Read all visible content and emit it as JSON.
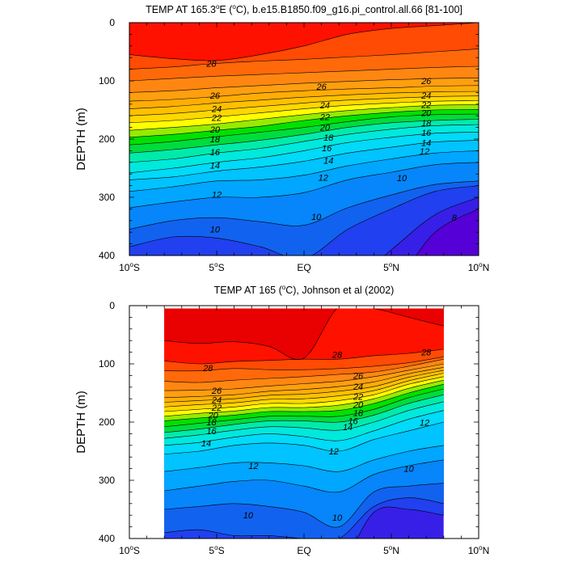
{
  "chart_data": [
    {
      "type": "filled-contour",
      "title_parts": {
        "pre": "TEMP AT 165.3",
        "sup1": "o",
        "mid": "E (",
        "sup2": "o",
        "post": "C), b.e15.B1850.f09_g16.pi_control.all.66 [81-100]"
      },
      "ylabel": "DEPTH (m)",
      "xlim": [
        -10,
        10
      ],
      "ylim": [
        400,
        0
      ],
      "x_ticks": [
        {
          "v": -10,
          "num": "10",
          "sup": "o",
          "hem": "S"
        },
        {
          "v": -5,
          "num": "5",
          "sup": "o",
          "hem": "S"
        },
        {
          "v": 0,
          "num": "EQ",
          "sup": "",
          "hem": ""
        },
        {
          "v": 5,
          "num": "5",
          "sup": "o",
          "hem": "N"
        },
        {
          "v": 10,
          "num": "10",
          "sup": "o",
          "hem": "N"
        }
      ],
      "y_ticks": [
        "0",
        "100",
        "200",
        "300",
        "400"
      ],
      "y_tick_values": [
        0,
        100,
        200,
        300,
        400
      ],
      "data_x_range": [
        -10,
        10
      ],
      "levels": [
        8,
        9,
        10,
        11,
        12,
        13,
        14,
        15,
        16,
        17,
        18,
        19,
        20,
        21,
        22,
        23,
        24,
        25,
        26,
        27,
        28
      ],
      "isotherm_x": [
        -10,
        -7.5,
        -5,
        -2.5,
        0,
        2.5,
        5,
        7.5,
        10
      ],
      "isotherm_depths": {
        "8": [
          450,
          450,
          450,
          450,
          450,
          450,
          450,
          360,
          320
        ],
        "9": [
          450,
          450,
          450,
          450,
          450,
          450,
          390,
          330,
          300
        ],
        "10": [
          385,
          368,
          370,
          385,
          405,
          355,
          320,
          290,
          280
        ],
        "11": [
          355,
          340,
          335,
          342,
          348,
          318,
          296,
          278,
          272
        ],
        "12": [
          318,
          308,
          300,
          300,
          292,
          270,
          257,
          244,
          240
        ],
        "13": [
          290,
          282,
          272,
          270,
          262,
          246,
          234,
          224,
          220
        ],
        "14": [
          270,
          265,
          255,
          248,
          238,
          224,
          214,
          205,
          202
        ],
        "15": [
          258,
          250,
          240,
          232,
          220,
          206,
          197,
          190,
          188
        ],
        "16": [
          240,
          234,
          224,
          216,
          204,
          192,
          183,
          177,
          175
        ],
        "17": [
          224,
          218,
          210,
          202,
          192,
          180,
          172,
          168,
          166
        ],
        "18": [
          210,
          204,
          196,
          188,
          180,
          170,
          162,
          158,
          157
        ],
        "19": [
          197,
          192,
          185,
          178,
          168,
          160,
          154,
          150,
          149
        ],
        "20": [
          185,
          180,
          174,
          166,
          158,
          151,
          146,
          142,
          141
        ],
        "21": [
          172,
          168,
          162,
          155,
          148,
          142,
          138,
          135,
          134
        ],
        "22": [
          160,
          156,
          150,
          144,
          138,
          133,
          130,
          127,
          126
        ],
        "23": [
          148,
          144,
          138,
          133,
          128,
          124,
          121,
          119,
          118
        ],
        "24": [
          135,
          132,
          127,
          121,
          117,
          114,
          112,
          109,
          108
        ],
        "25": [
          120,
          117,
          112,
          108,
          104,
          101,
          98,
          96,
          95
        ],
        "26": [
          100,
          96,
          92,
          89,
          86,
          83,
          80,
          77,
          75
        ],
        "27": [
          80,
          76,
          70,
          66,
          63,
          59,
          55,
          50,
          45
        ],
        "28": [
          55,
          62,
          65,
          55,
          40,
          20,
          10,
          5,
          0
        ]
      },
      "contour_labels": [
        {
          "text": "28",
          "x": -5.3,
          "y": 70
        },
        {
          "text": "26",
          "x": -5.1,
          "y": 125
        },
        {
          "text": "24",
          "x": -5.0,
          "y": 148
        },
        {
          "text": "22",
          "x": -5.0,
          "y": 163
        },
        {
          "text": "20",
          "x": -5.1,
          "y": 183
        },
        {
          "text": "18",
          "x": -5.1,
          "y": 200
        },
        {
          "text": "16",
          "x": -5.1,
          "y": 222
        },
        {
          "text": "14",
          "x": -5.1,
          "y": 245
        },
        {
          "text": "12",
          "x": -5.0,
          "y": 295
        },
        {
          "text": "10",
          "x": -5.1,
          "y": 355
        },
        {
          "text": "26",
          "x": 1.0,
          "y": 110
        },
        {
          "text": "24",
          "x": 1.2,
          "y": 142
        },
        {
          "text": "22",
          "x": 1.2,
          "y": 162
        },
        {
          "text": "20",
          "x": 1.2,
          "y": 180
        },
        {
          "text": "18",
          "x": 1.4,
          "y": 197
        },
        {
          "text": "16",
          "x": 1.3,
          "y": 215
        },
        {
          "text": "14",
          "x": 1.4,
          "y": 237
        },
        {
          "text": "12",
          "x": 1.1,
          "y": 266
        },
        {
          "text": "10",
          "x": 0.7,
          "y": 333
        },
        {
          "text": "26",
          "x": 7.0,
          "y": 100
        },
        {
          "text": "24",
          "x": 7.0,
          "y": 125
        },
        {
          "text": "22",
          "x": 7.0,
          "y": 141
        },
        {
          "text": "20",
          "x": 7.0,
          "y": 155
        },
        {
          "text": "18",
          "x": 7.0,
          "y": 172
        },
        {
          "text": "16",
          "x": 7.0,
          "y": 189
        },
        {
          "text": "14",
          "x": 7.0,
          "y": 206
        },
        {
          "text": "12",
          "x": 6.9,
          "y": 221
        },
        {
          "text": "10",
          "x": 5.6,
          "y": 267
        },
        {
          "text": "8",
          "x": 8.6,
          "y": 335
        }
      ]
    },
    {
      "type": "filled-contour",
      "title_parts": {
        "pre": "TEMP AT 165 (",
        "sup1": "o",
        "mid": "C), Johnson et al (2002)",
        "sup2": "",
        "post": ""
      },
      "ylabel": "DEPTH (m)",
      "xlim": [
        -10,
        10
      ],
      "ylim": [
        400,
        0
      ],
      "x_ticks": [
        {
          "v": -10,
          "num": "10",
          "sup": "o",
          "hem": "S"
        },
        {
          "v": -5,
          "num": "5",
          "sup": "o",
          "hem": "S"
        },
        {
          "v": 0,
          "num": "EQ",
          "sup": "",
          "hem": ""
        },
        {
          "v": 5,
          "num": "5",
          "sup": "o",
          "hem": "N"
        },
        {
          "v": 10,
          "num": "10",
          "sup": "o",
          "hem": "N"
        }
      ],
      "y_ticks": [
        "0",
        "100",
        "200",
        "300",
        "400"
      ],
      "y_tick_values": [
        0,
        100,
        200,
        300,
        400
      ],
      "data_x_range": [
        -8,
        8
      ],
      "data_top_depth": 5,
      "levels": [
        9,
        10,
        11,
        12,
        13,
        14,
        15,
        16,
        17,
        18,
        19,
        20,
        21,
        22,
        23,
        24,
        25,
        26,
        27,
        28,
        29
      ],
      "isotherm_x": [
        -8,
        -6,
        -4,
        -2,
        0,
        2,
        4,
        6,
        8
      ],
      "isotherm_depths": {
        "9": [
          450,
          450,
          450,
          450,
          450,
          450,
          355,
          350,
          360
        ],
        "10": [
          390,
          385,
          395,
          395,
          400,
          400,
          345,
          330,
          340
        ],
        "11": [
          350,
          345,
          340,
          345,
          355,
          380,
          320,
          310,
          305
        ],
        "12": [
          318,
          310,
          302,
          300,
          310,
          320,
          290,
          275,
          265
        ],
        "13": [
          285,
          278,
          270,
          270,
          275,
          285,
          265,
          250,
          240
        ],
        "14": [
          255,
          250,
          240,
          236,
          240,
          250,
          230,
          215,
          200
        ],
        "15": [
          240,
          235,
          226,
          220,
          225,
          232,
          215,
          195,
          180
        ],
        "16": [
          228,
          222,
          214,
          208,
          210,
          214,
          200,
          180,
          165
        ],
        "17": [
          218,
          212,
          204,
          198,
          198,
          200,
          188,
          168,
          153
        ],
        "18": [
          208,
          202,
          196,
          190,
          190,
          190,
          178,
          158,
          143
        ],
        "19": [
          198,
          193,
          188,
          182,
          182,
          180,
          168,
          150,
          135
        ],
        "20": [
          190,
          185,
          181,
          175,
          175,
          171,
          160,
          142,
          128
        ],
        "21": [
          182,
          178,
          174,
          168,
          168,
          163,
          153,
          135,
          122
        ],
        "22": [
          174,
          170,
          167,
          161,
          160,
          155,
          146,
          129,
          116
        ],
        "23": [
          166,
          163,
          160,
          154,
          152,
          147,
          139,
          123,
          111
        ],
        "24": [
          158,
          156,
          153,
          147,
          144,
          139,
          131,
          117,
          106
        ],
        "25": [
          146,
          145,
          143,
          138,
          134,
          130,
          122,
          111,
          100
        ],
        "26": [
          130,
          132,
          128,
          125,
          122,
          118,
          114,
          104,
          92
        ],
        "27": [
          112,
          112,
          108,
          110,
          110,
          108,
          104,
          98,
          88
        ],
        "28": [
          95,
          100,
          96,
          94,
          92,
          92,
          86,
          82,
          75
        ],
        "29": [
          60,
          65,
          62,
          70,
          90,
          2,
          5,
          20,
          35
        ]
      },
      "contour_labels": [
        {
          "text": "28",
          "x": -5.5,
          "y": 107
        },
        {
          "text": "26",
          "x": -5.0,
          "y": 146
        },
        {
          "text": "24",
          "x": -5.0,
          "y": 162
        },
        {
          "text": "22",
          "x": -5.0,
          "y": 175
        },
        {
          "text": "20",
          "x": -5.2,
          "y": 188
        },
        {
          "text": "18",
          "x": -5.3,
          "y": 200
        },
        {
          "text": "16",
          "x": -5.3,
          "y": 215
        },
        {
          "text": "14",
          "x": -5.6,
          "y": 236
        },
        {
          "text": "12",
          "x": -2.9,
          "y": 275
        },
        {
          "text": "10",
          "x": -3.2,
          "y": 360
        },
        {
          "text": "28",
          "x": 1.9,
          "y": 84
        },
        {
          "text": "26",
          "x": 3.1,
          "y": 120
        },
        {
          "text": "24",
          "x": 3.1,
          "y": 139
        },
        {
          "text": "22",
          "x": 3.1,
          "y": 156
        },
        {
          "text": "20",
          "x": 3.1,
          "y": 170
        },
        {
          "text": "18",
          "x": 3.1,
          "y": 184
        },
        {
          "text": "16",
          "x": 2.8,
          "y": 198
        },
        {
          "text": "14",
          "x": 2.5,
          "y": 208
        },
        {
          "text": "12",
          "x": 1.7,
          "y": 250
        },
        {
          "text": "10",
          "x": 1.9,
          "y": 364
        },
        {
          "text": "28",
          "x": 7.0,
          "y": 80
        },
        {
          "text": "12",
          "x": 6.9,
          "y": 201
        },
        {
          "text": "10",
          "x": 6.0,
          "y": 280
        }
      ]
    }
  ]
}
